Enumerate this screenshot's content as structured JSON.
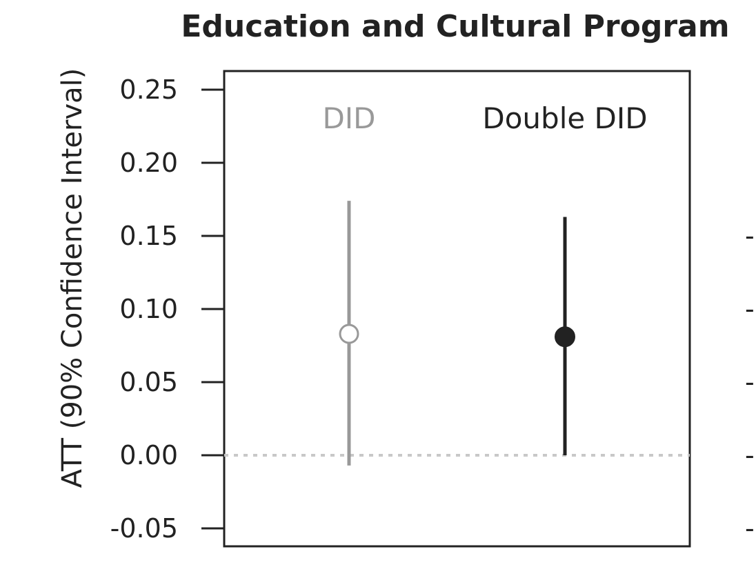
{
  "chart_data": {
    "type": "scatter",
    "title": "Education and Cultural Program",
    "xlabel": "",
    "ylabel": "ATT (90% Confidence Interval)",
    "ylim": [
      -0.06,
      0.255
    ],
    "yticks": [
      0.25,
      0.2,
      0.15,
      0.1,
      0.05,
      0.0,
      -0.05
    ],
    "ytick_labels": [
      "0.25",
      "0.20",
      "0.15",
      "0.10",
      "0.05",
      "0.00",
      "-0.05"
    ],
    "reference_line": {
      "y": 0.0,
      "style": "dotted",
      "color": "#c8c8c8"
    },
    "grid": false,
    "legend": "none",
    "series": [
      {
        "name": "DID",
        "estimate": 0.083,
        "ci_low": -0.007,
        "ci_high": 0.174,
        "color": "#999999",
        "marker": "open-circle"
      },
      {
        "name": "Double DID",
        "estimate": 0.081,
        "ci_low": 0.0,
        "ci_high": 0.163,
        "color": "#222222",
        "marker": "filled-circle"
      }
    ],
    "clipped_right_panel_yticks": [
      {
        "label": "-",
        "value": 0.15
      },
      {
        "label": "-",
        "value": 0.1
      },
      {
        "label": "-",
        "value": 0.05
      },
      {
        "label": "-",
        "value": 0.0
      },
      {
        "label": "-",
        "value": -0.05
      }
    ]
  }
}
